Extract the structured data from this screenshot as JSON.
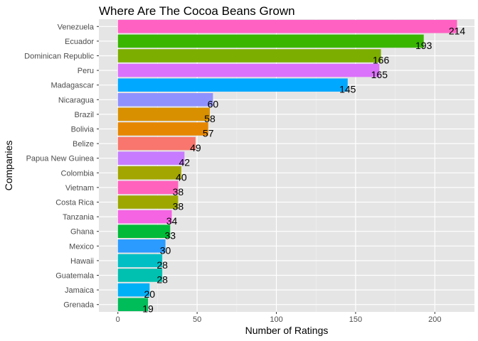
{
  "chart_data": {
    "type": "bar",
    "orientation": "horizontal",
    "title": "Where Are The Cocoa Beans Grown",
    "xlabel": "Number of Ratings",
    "ylabel": "Companies",
    "xlim": [
      -12,
      225
    ],
    "xticks": [
      0,
      50,
      100,
      150,
      200
    ],
    "xtick_labels": [
      "0",
      "50",
      "100",
      "150",
      "200"
    ],
    "grid": true,
    "panel_background": "#e5e5e5",
    "categories": [
      "Venezuela",
      "Ecuador",
      "Dominican Republic",
      "Peru",
      "Madagascar",
      "Nicaragua",
      "Brazil",
      "Bolivia",
      "Belize",
      "Papua New Guinea",
      "Colombia",
      "Vietnam",
      "Costa Rica",
      "Tanzania",
      "Ghana",
      "Mexico",
      "Hawaii",
      "Guatemala",
      "Jamaica",
      "Grenada"
    ],
    "values": [
      214,
      193,
      166,
      165,
      145,
      60,
      58,
      57,
      49,
      42,
      40,
      38,
      38,
      34,
      33,
      30,
      28,
      28,
      20,
      19
    ],
    "data_labels": [
      "214",
      "193",
      "166",
      "165",
      "145",
      "60",
      "58",
      "57",
      "49",
      "42",
      "40",
      "38",
      "38",
      "34",
      "33",
      "30",
      "28",
      "28",
      "20",
      "19"
    ],
    "colors": [
      "#FF61C3",
      "#39B600",
      "#7CAE00",
      "#DB72FB",
      "#00A9FF",
      "#8F91FF",
      "#D89000",
      "#E58700",
      "#F8766D",
      "#C77CFF",
      "#A3A500",
      "#FF62BC",
      "#9DA700",
      "#F564E3",
      "#00BA38",
      "#2B9BFF",
      "#00BFC4",
      "#00C0AF",
      "#00B0F6",
      "#00BC59"
    ]
  }
}
